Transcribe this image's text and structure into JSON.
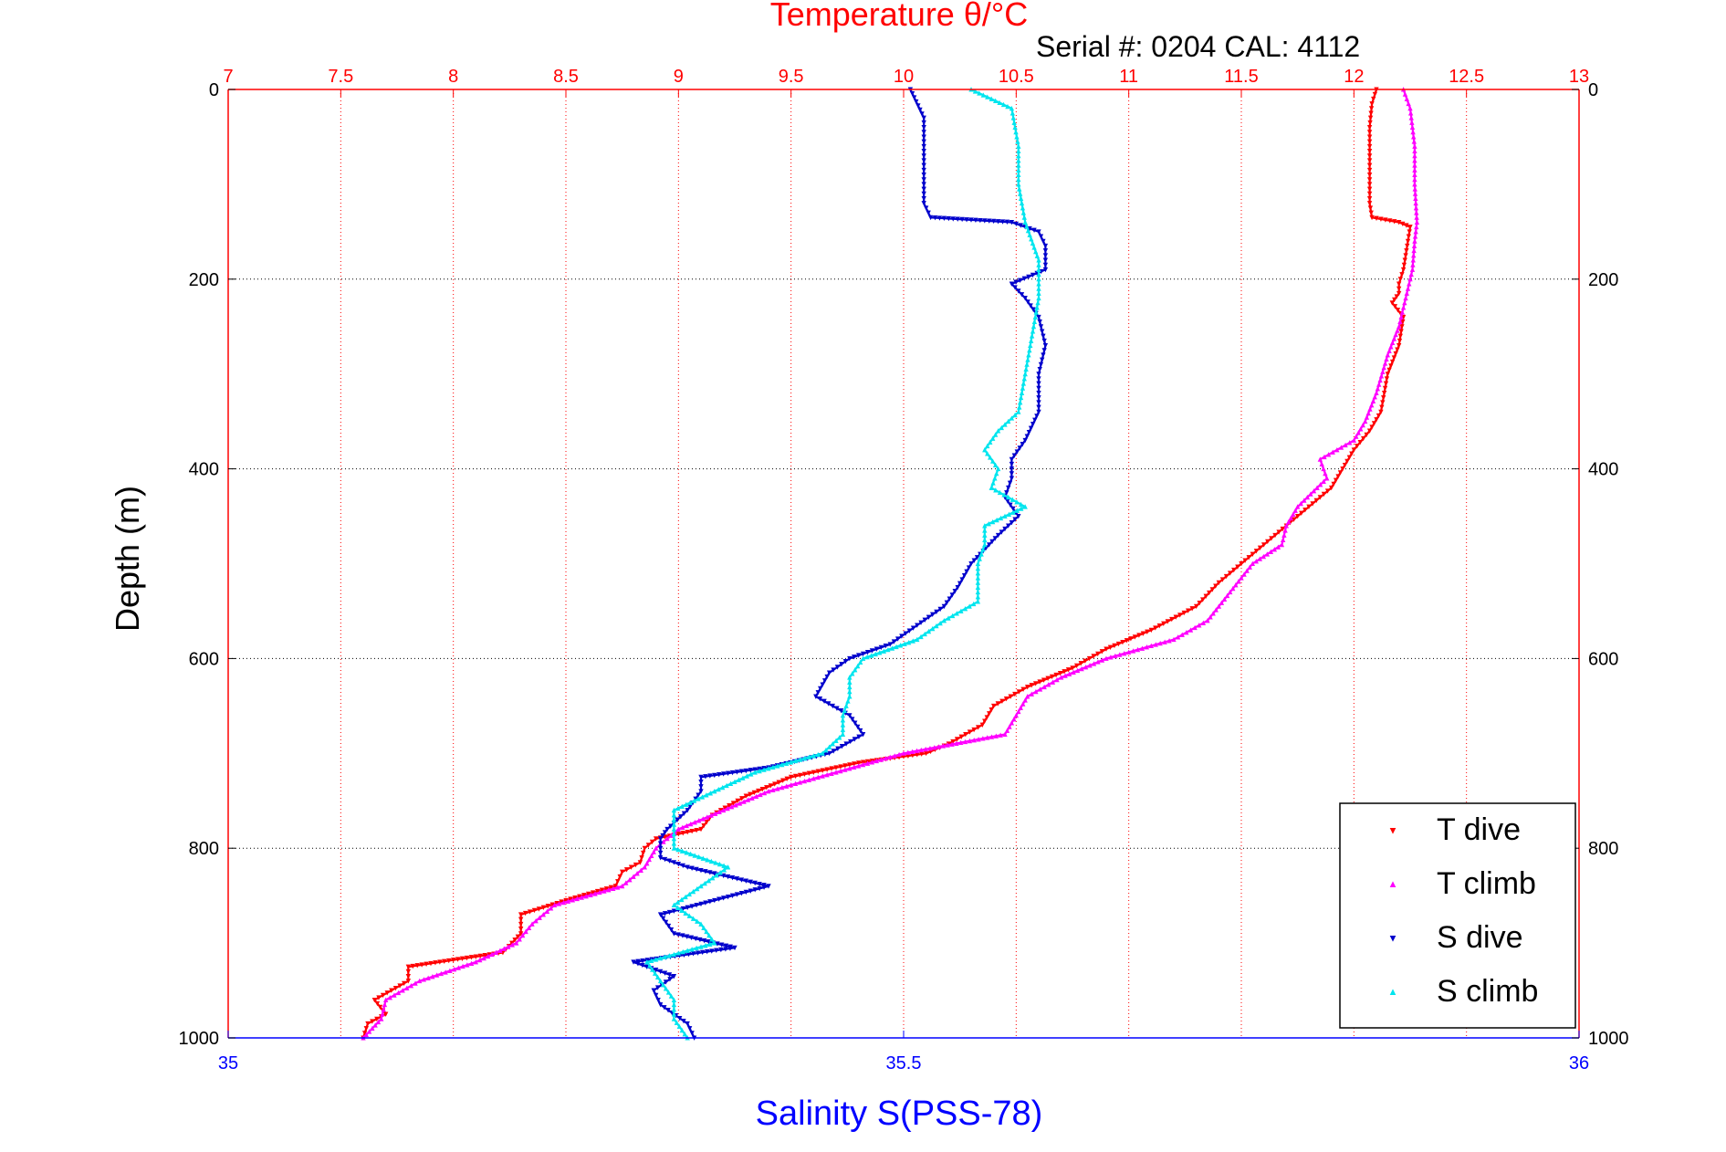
{
  "chart_data": {
    "type": "scatter",
    "title": "Temperature θ/°C",
    "subtitle": "Serial #: 0204  CAL: 4112",
    "ylabel": "Depth (m)",
    "xlabel_bottom": "Salinity S(PSS-78)",
    "y_reversed": true,
    "ylim": [
      0,
      1000
    ],
    "y_ticks": [
      "0",
      "200",
      "400",
      "600",
      "800",
      "1000"
    ],
    "x_top": {
      "lim": [
        7,
        13
      ],
      "ticks": [
        "7",
        "7.5",
        "8",
        "8.5",
        "9",
        "9.5",
        "10",
        "10.5",
        "11",
        "11.5",
        "12",
        "12.5",
        "13"
      ],
      "grid": true,
      "color": "#ff0000"
    },
    "x_bottom": {
      "lim": [
        35,
        36
      ],
      "ticks": [
        "35",
        "35.5",
        "36"
      ],
      "color": "#0000ff"
    },
    "y_grid": true,
    "legend_position": "bottom-right",
    "series": [
      {
        "name": "T dive",
        "axis": "top",
        "color": "#ff0000",
        "marker": "triangle-down",
        "points": [
          [
            0,
            12.1
          ],
          [
            15,
            12.08
          ],
          [
            40,
            12.07
          ],
          [
            80,
            12.07
          ],
          [
            120,
            12.07
          ],
          [
            135,
            12.08
          ],
          [
            140,
            12.2
          ],
          [
            145,
            12.25
          ],
          [
            160,
            12.24
          ],
          [
            190,
            12.22
          ],
          [
            205,
            12.2
          ],
          [
            215,
            12.2
          ],
          [
            225,
            12.17
          ],
          [
            240,
            12.22
          ],
          [
            270,
            12.2
          ],
          [
            300,
            12.15
          ],
          [
            340,
            12.12
          ],
          [
            360,
            12.07
          ],
          [
            380,
            12.0
          ],
          [
            400,
            11.95
          ],
          [
            420,
            11.9
          ],
          [
            440,
            11.8
          ],
          [
            460,
            11.7
          ],
          [
            480,
            11.6
          ],
          [
            500,
            11.5
          ],
          [
            520,
            11.4
          ],
          [
            545,
            11.3
          ],
          [
            570,
            11.1
          ],
          [
            590,
            10.9
          ],
          [
            610,
            10.75
          ],
          [
            630,
            10.55
          ],
          [
            650,
            10.4
          ],
          [
            670,
            10.35
          ],
          [
            690,
            10.2
          ],
          [
            700,
            10.1
          ],
          [
            710,
            9.8
          ],
          [
            725,
            9.5
          ],
          [
            745,
            9.3
          ],
          [
            765,
            9.15
          ],
          [
            780,
            9.1
          ],
          [
            790,
            8.9
          ],
          [
            800,
            8.85
          ],
          [
            815,
            8.83
          ],
          [
            825,
            8.75
          ],
          [
            840,
            8.72
          ],
          [
            855,
            8.5
          ],
          [
            870,
            8.3
          ],
          [
            890,
            8.3
          ],
          [
            910,
            8.22
          ],
          [
            925,
            7.8
          ],
          [
            940,
            7.8
          ],
          [
            960,
            7.65
          ],
          [
            975,
            7.7
          ],
          [
            985,
            7.62
          ],
          [
            1000,
            7.6
          ]
        ]
      },
      {
        "name": "T climb",
        "axis": "top",
        "color": "#ff00ff",
        "marker": "triangle-up",
        "points": [
          [
            0,
            12.22
          ],
          [
            20,
            12.25
          ],
          [
            60,
            12.27
          ],
          [
            100,
            12.27
          ],
          [
            140,
            12.28
          ],
          [
            160,
            12.27
          ],
          [
            190,
            12.26
          ],
          [
            220,
            12.23
          ],
          [
            250,
            12.2
          ],
          [
            280,
            12.15
          ],
          [
            320,
            12.1
          ],
          [
            350,
            12.05
          ],
          [
            370,
            12.0
          ],
          [
            390,
            11.85
          ],
          [
            410,
            11.88
          ],
          [
            440,
            11.75
          ],
          [
            460,
            11.7
          ],
          [
            480,
            11.68
          ],
          [
            500,
            11.55
          ],
          [
            530,
            11.45
          ],
          [
            560,
            11.35
          ],
          [
            580,
            11.2
          ],
          [
            600,
            10.9
          ],
          [
            620,
            10.7
          ],
          [
            640,
            10.55
          ],
          [
            660,
            10.5
          ],
          [
            680,
            10.45
          ],
          [
            700,
            10.0
          ],
          [
            720,
            9.7
          ],
          [
            740,
            9.4
          ],
          [
            760,
            9.2
          ],
          [
            780,
            9.0
          ],
          [
            800,
            8.9
          ],
          [
            820,
            8.85
          ],
          [
            840,
            8.75
          ],
          [
            860,
            8.45
          ],
          [
            880,
            8.35
          ],
          [
            900,
            8.28
          ],
          [
            920,
            8.1
          ],
          [
            940,
            7.85
          ],
          [
            960,
            7.7
          ],
          [
            980,
            7.68
          ],
          [
            1000,
            7.6
          ]
        ]
      },
      {
        "name": "S dive",
        "axis": "bottom",
        "color": "#0000cc",
        "marker": "triangle-down",
        "points": [
          [
            0,
            35.505
          ],
          [
            30,
            35.515
          ],
          [
            80,
            35.515
          ],
          [
            120,
            35.515
          ],
          [
            135,
            35.52
          ],
          [
            140,
            35.58
          ],
          [
            150,
            35.6
          ],
          [
            165,
            35.605
          ],
          [
            190,
            35.605
          ],
          [
            205,
            35.58
          ],
          [
            220,
            35.59
          ],
          [
            240,
            35.6
          ],
          [
            270,
            35.605
          ],
          [
            300,
            35.6
          ],
          [
            340,
            35.6
          ],
          [
            370,
            35.59
          ],
          [
            390,
            35.58
          ],
          [
            410,
            35.58
          ],
          [
            430,
            35.575
          ],
          [
            450,
            35.585
          ],
          [
            470,
            35.57
          ],
          [
            500,
            35.55
          ],
          [
            525,
            35.54
          ],
          [
            545,
            35.53
          ],
          [
            565,
            35.51
          ],
          [
            585,
            35.49
          ],
          [
            600,
            35.46
          ],
          [
            615,
            35.445
          ],
          [
            640,
            35.435
          ],
          [
            660,
            35.46
          ],
          [
            680,
            35.47
          ],
          [
            700,
            35.445
          ],
          [
            715,
            35.4
          ],
          [
            725,
            35.35
          ],
          [
            740,
            35.35
          ],
          [
            760,
            35.34
          ],
          [
            780,
            35.325
          ],
          [
            790,
            35.32
          ],
          [
            810,
            35.32
          ],
          [
            820,
            35.34
          ],
          [
            840,
            35.4
          ],
          [
            870,
            35.32
          ],
          [
            890,
            35.33
          ],
          [
            905,
            35.375
          ],
          [
            920,
            35.3
          ],
          [
            935,
            35.33
          ],
          [
            950,
            35.315
          ],
          [
            965,
            35.32
          ],
          [
            985,
            35.34
          ],
          [
            1000,
            35.345
          ]
        ]
      },
      {
        "name": "S climb",
        "axis": "bottom",
        "color": "#00e5ee",
        "marker": "triangle-up",
        "points": [
          [
            0,
            35.55
          ],
          [
            20,
            35.58
          ],
          [
            60,
            35.585
          ],
          [
            100,
            35.585
          ],
          [
            140,
            35.59
          ],
          [
            180,
            35.6
          ],
          [
            220,
            35.6
          ],
          [
            260,
            35.595
          ],
          [
            300,
            35.59
          ],
          [
            340,
            35.585
          ],
          [
            360,
            35.57
          ],
          [
            380,
            35.56
          ],
          [
            400,
            35.57
          ],
          [
            420,
            35.565
          ],
          [
            440,
            35.59
          ],
          [
            460,
            35.56
          ],
          [
            480,
            35.56
          ],
          [
            500,
            35.555
          ],
          [
            520,
            35.555
          ],
          [
            540,
            35.555
          ],
          [
            560,
            35.53
          ],
          [
            580,
            35.51
          ],
          [
            600,
            35.47
          ],
          [
            620,
            35.46
          ],
          [
            640,
            35.46
          ],
          [
            660,
            35.455
          ],
          [
            680,
            35.455
          ],
          [
            700,
            35.44
          ],
          [
            720,
            35.39
          ],
          [
            740,
            35.36
          ],
          [
            760,
            35.33
          ],
          [
            780,
            35.33
          ],
          [
            800,
            35.33
          ],
          [
            820,
            35.37
          ],
          [
            840,
            35.35
          ],
          [
            860,
            35.33
          ],
          [
            880,
            35.35
          ],
          [
            900,
            35.36
          ],
          [
            920,
            35.31
          ],
          [
            940,
            35.32
          ],
          [
            960,
            35.33
          ],
          [
            980,
            35.33
          ],
          [
            1000,
            35.34
          ]
        ]
      }
    ]
  }
}
